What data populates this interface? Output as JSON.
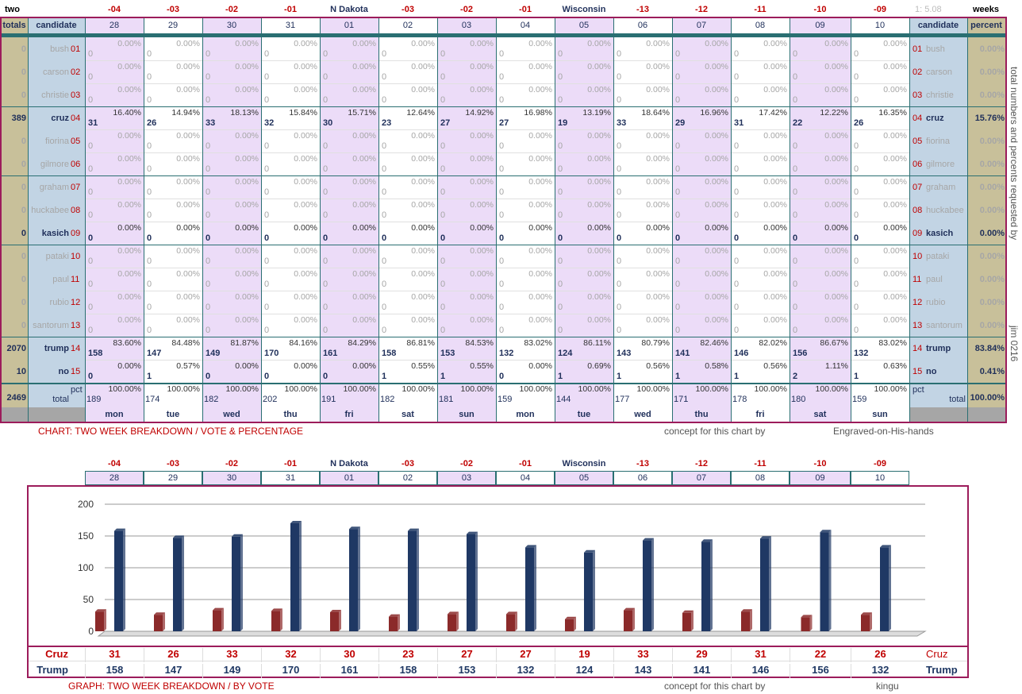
{
  "top_row": {
    "left_label": "two",
    "right_label": "weeks",
    "scale": "1: 5.08",
    "columns": [
      "-04",
      "-03",
      "-02",
      "-01",
      "N Dakota",
      "-03",
      "-02",
      "-01",
      "Wisconsin",
      "-13",
      "-12",
      "-11",
      "-10",
      "-09"
    ]
  },
  "header": {
    "totals": "totals",
    "candidate": "candidate",
    "days": [
      "28",
      "29",
      "30",
      "31",
      "01",
      "02",
      "03",
      "04",
      "05",
      "06",
      "07",
      "08",
      "09",
      "10"
    ],
    "candidate_right": "candidate",
    "percent": "percent"
  },
  "candidates": [
    {
      "num": "01",
      "name": "bush",
      "total": "0",
      "pct": "0.00%",
      "counts": [
        "0",
        "0",
        "0",
        "0",
        "0",
        "0",
        "0",
        "0",
        "0",
        "0",
        "0",
        "0",
        "0",
        "0"
      ],
      "pcts": [
        "0.00%",
        "0.00%",
        "0.00%",
        "0.00%",
        "0.00%",
        "0.00%",
        "0.00%",
        "0.00%",
        "0.00%",
        "0.00%",
        "0.00%",
        "0.00%",
        "0.00%",
        "0.00%"
      ],
      "active": false
    },
    {
      "num": "02",
      "name": "carson",
      "total": "0",
      "pct": "0.00%",
      "counts": [
        "0",
        "0",
        "0",
        "0",
        "0",
        "0",
        "0",
        "0",
        "0",
        "0",
        "0",
        "0",
        "0",
        "0"
      ],
      "pcts": [
        "0.00%",
        "0.00%",
        "0.00%",
        "0.00%",
        "0.00%",
        "0.00%",
        "0.00%",
        "0.00%",
        "0.00%",
        "0.00%",
        "0.00%",
        "0.00%",
        "0.00%",
        "0.00%"
      ],
      "active": false
    },
    {
      "num": "03",
      "name": "christie",
      "total": "0",
      "pct": "0.00%",
      "counts": [
        "0",
        "0",
        "0",
        "0",
        "0",
        "0",
        "0",
        "0",
        "0",
        "0",
        "0",
        "0",
        "0",
        "0"
      ],
      "pcts": [
        "0.00%",
        "0.00%",
        "0.00%",
        "0.00%",
        "0.00%",
        "0.00%",
        "0.00%",
        "0.00%",
        "0.00%",
        "0.00%",
        "0.00%",
        "0.00%",
        "0.00%",
        "0.00%"
      ],
      "active": false
    },
    {
      "num": "04",
      "name": "cruz",
      "total": "389",
      "pct": "15.76%",
      "counts": [
        "31",
        "26",
        "33",
        "32",
        "30",
        "23",
        "27",
        "27",
        "19",
        "33",
        "29",
        "31",
        "22",
        "26"
      ],
      "pcts": [
        "16.40%",
        "14.94%",
        "18.13%",
        "15.84%",
        "15.71%",
        "12.64%",
        "14.92%",
        "16.98%",
        "13.19%",
        "18.64%",
        "16.96%",
        "17.42%",
        "12.22%",
        "16.35%"
      ],
      "active": true
    },
    {
      "num": "05",
      "name": "fiorina",
      "total": "0",
      "pct": "0.00%",
      "counts": [
        "0",
        "0",
        "0",
        "0",
        "0",
        "0",
        "0",
        "0",
        "0",
        "0",
        "0",
        "0",
        "0",
        "0"
      ],
      "pcts": [
        "0.00%",
        "0.00%",
        "0.00%",
        "0.00%",
        "0.00%",
        "0.00%",
        "0.00%",
        "0.00%",
        "0.00%",
        "0.00%",
        "0.00%",
        "0.00%",
        "0.00%",
        "0.00%"
      ],
      "active": false
    },
    {
      "num": "06",
      "name": "gilmore",
      "total": "0",
      "pct": "0.00%",
      "counts": [
        "0",
        "0",
        "0",
        "0",
        "0",
        "0",
        "0",
        "0",
        "0",
        "0",
        "0",
        "0",
        "0",
        "0"
      ],
      "pcts": [
        "0.00%",
        "0.00%",
        "0.00%",
        "0.00%",
        "0.00%",
        "0.00%",
        "0.00%",
        "0.00%",
        "0.00%",
        "0.00%",
        "0.00%",
        "0.00%",
        "0.00%",
        "0.00%"
      ],
      "active": false
    },
    {
      "num": "07",
      "name": "graham",
      "total": "0",
      "pct": "0.00%",
      "counts": [
        "0",
        "0",
        "0",
        "0",
        "0",
        "0",
        "0",
        "0",
        "0",
        "0",
        "0",
        "0",
        "0",
        "0"
      ],
      "pcts": [
        "0.00%",
        "0.00%",
        "0.00%",
        "0.00%",
        "0.00%",
        "0.00%",
        "0.00%",
        "0.00%",
        "0.00%",
        "0.00%",
        "0.00%",
        "0.00%",
        "0.00%",
        "0.00%"
      ],
      "active": false
    },
    {
      "num": "08",
      "name": "huckabee",
      "total": "0",
      "pct": "0.00%",
      "counts": [
        "0",
        "0",
        "0",
        "0",
        "0",
        "0",
        "0",
        "0",
        "0",
        "0",
        "0",
        "0",
        "0",
        "0"
      ],
      "pcts": [
        "0.00%",
        "0.00%",
        "0.00%",
        "0.00%",
        "0.00%",
        "0.00%",
        "0.00%",
        "0.00%",
        "0.00%",
        "0.00%",
        "0.00%",
        "0.00%",
        "0.00%",
        "0.00%"
      ],
      "active": false
    },
    {
      "num": "09",
      "name": "kasich",
      "total": "0",
      "pct": "0.00%",
      "counts": [
        "0",
        "0",
        "0",
        "0",
        "0",
        "0",
        "0",
        "0",
        "0",
        "0",
        "0",
        "0",
        "0",
        "0"
      ],
      "pcts": [
        "0.00%",
        "0.00%",
        "0.00%",
        "0.00%",
        "0.00%",
        "0.00%",
        "0.00%",
        "0.00%",
        "0.00%",
        "0.00%",
        "0.00%",
        "0.00%",
        "0.00%",
        "0.00%"
      ],
      "active": true
    },
    {
      "num": "10",
      "name": "pataki",
      "total": "0",
      "pct": "0.00%",
      "counts": [
        "0",
        "0",
        "0",
        "0",
        "0",
        "0",
        "0",
        "0",
        "0",
        "0",
        "0",
        "0",
        "0",
        "0"
      ],
      "pcts": [
        "0.00%",
        "0.00%",
        "0.00%",
        "0.00%",
        "0.00%",
        "0.00%",
        "0.00%",
        "0.00%",
        "0.00%",
        "0.00%",
        "0.00%",
        "0.00%",
        "0.00%",
        "0.00%"
      ],
      "active": false
    },
    {
      "num": "11",
      "name": "paul",
      "total": "0",
      "pct": "0.00%",
      "counts": [
        "0",
        "0",
        "0",
        "0",
        "0",
        "0",
        "0",
        "0",
        "0",
        "0",
        "0",
        "0",
        "0",
        "0"
      ],
      "pcts": [
        "0.00%",
        "0.00%",
        "0.00%",
        "0.00%",
        "0.00%",
        "0.00%",
        "0.00%",
        "0.00%",
        "0.00%",
        "0.00%",
        "0.00%",
        "0.00%",
        "0.00%",
        "0.00%"
      ],
      "active": false
    },
    {
      "num": "12",
      "name": "rubio",
      "total": "0",
      "pct": "0.00%",
      "counts": [
        "0",
        "0",
        "0",
        "0",
        "0",
        "0",
        "0",
        "0",
        "0",
        "0",
        "0",
        "0",
        "0",
        "0"
      ],
      "pcts": [
        "0.00%",
        "0.00%",
        "0.00%",
        "0.00%",
        "0.00%",
        "0.00%",
        "0.00%",
        "0.00%",
        "0.00%",
        "0.00%",
        "0.00%",
        "0.00%",
        "0.00%",
        "0.00%"
      ],
      "active": false
    },
    {
      "num": "13",
      "name": "santorum",
      "total": "0",
      "pct": "0.00%",
      "counts": [
        "0",
        "0",
        "0",
        "0",
        "0",
        "0",
        "0",
        "0",
        "0",
        "0",
        "0",
        "0",
        "0",
        "0"
      ],
      "pcts": [
        "0.00%",
        "0.00%",
        "0.00%",
        "0.00%",
        "0.00%",
        "0.00%",
        "0.00%",
        "0.00%",
        "0.00%",
        "0.00%",
        "0.00%",
        "0.00%",
        "0.00%",
        "0.00%"
      ],
      "active": false
    },
    {
      "num": "14",
      "name": "trump",
      "total": "2070",
      "pct": "83.84%",
      "counts": [
        "158",
        "147",
        "149",
        "170",
        "161",
        "158",
        "153",
        "132",
        "124",
        "143",
        "141",
        "146",
        "156",
        "132"
      ],
      "pcts": [
        "83.60%",
        "84.48%",
        "81.87%",
        "84.16%",
        "84.29%",
        "86.81%",
        "84.53%",
        "83.02%",
        "86.11%",
        "80.79%",
        "82.46%",
        "82.02%",
        "86.67%",
        "83.02%"
      ],
      "active": true
    },
    {
      "num": "15",
      "name": "no",
      "total": "10",
      "pct": "0.41%",
      "counts": [
        "0",
        "1",
        "0",
        "0",
        "0",
        "1",
        "1",
        "0",
        "1",
        "1",
        "1",
        "1",
        "2",
        "1"
      ],
      "pcts": [
        "0.00%",
        "0.57%",
        "0.00%",
        "0.00%",
        "0.00%",
        "0.55%",
        "0.55%",
        "0.00%",
        "0.69%",
        "0.56%",
        "0.58%",
        "0.56%",
        "1.11%",
        "0.63%"
      ],
      "active": true
    }
  ],
  "totals_row": {
    "total": "2469",
    "pct_label": "pct",
    "label": "total",
    "percent": "100.00%",
    "counts": [
      "189",
      "174",
      "182",
      "202",
      "191",
      "182",
      "181",
      "159",
      "144",
      "177",
      "171",
      "178",
      "180",
      "159"
    ],
    "pcts": [
      "100.00%",
      "100.00%",
      "100.00%",
      "100.00%",
      "100.00%",
      "100.00%",
      "100.00%",
      "100.00%",
      "100.00%",
      "100.00%",
      "100.00%",
      "100.00%",
      "100.00%",
      "100.00%"
    ]
  },
  "weekdays": [
    "mon",
    "tue",
    "wed",
    "thu",
    "fri",
    "sat",
    "sun",
    "mon",
    "tue",
    "wed",
    "thu",
    "fri",
    "sat",
    "sun"
  ],
  "vertical_note": "total numbers and percents requested by",
  "vertical_credit": "jim 0216",
  "chart_caption": "CHART: TWO WEEK BREAKDOWN / VOTE & PERCENTAGE",
  "concept_label": "concept for this chart by",
  "chart_credit": "Engraved-on-His-hands",
  "graph_caption": "GRAPH: TWO WEEK BREAKDOWN / BY VOTE",
  "graph_credit": "kingu",
  "chart_data": {
    "type": "bar",
    "categories": [
      "28",
      "29",
      "30",
      "31",
      "01",
      "02",
      "03",
      "04",
      "05",
      "06",
      "07",
      "08",
      "09",
      "10"
    ],
    "series": [
      {
        "name": "Cruz",
        "values": [
          31,
          26,
          33,
          32,
          30,
          23,
          27,
          27,
          19,
          33,
          29,
          31,
          22,
          26
        ]
      },
      {
        "name": "Trump",
        "values": [
          158,
          147,
          149,
          170,
          161,
          158,
          153,
          132,
          124,
          143,
          141,
          146,
          156,
          132
        ]
      }
    ],
    "yticks": [
      "200",
      "150",
      "100",
      "50",
      "0"
    ],
    "ylim": [
      0,
      200
    ],
    "colors": {
      "Cruz": "#8b2a2a",
      "Trump": "#1f3864"
    }
  }
}
